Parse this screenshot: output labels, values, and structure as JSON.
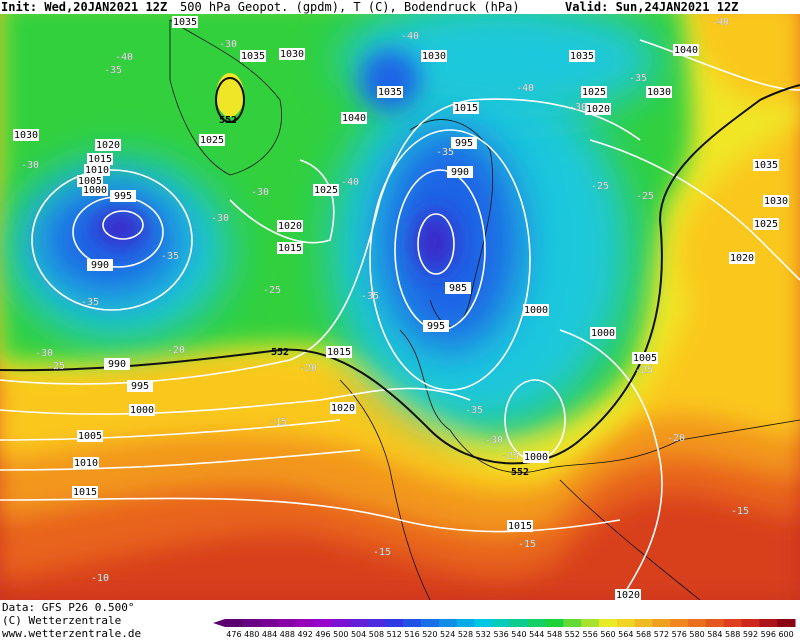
{
  "header": {
    "init": "Init: Wed,20JAN2021 12Z",
    "title": "500 hPa Geopot. (gpdm), T (C), Bodendruck (hPa)",
    "valid": "Valid: Sun,24JAN2021 12Z"
  },
  "footer": {
    "data": "Data: GFS P26 0.500°",
    "copyright": "(C) Wetterzentrale",
    "url": "www.wetterzentrale.de"
  },
  "legend": {
    "values": [
      476,
      480,
      484,
      488,
      492,
      496,
      500,
      504,
      508,
      512,
      516,
      520,
      524,
      528,
      532,
      536,
      540,
      544,
      548,
      552,
      556,
      560,
      564,
      568,
      572,
      576,
      580,
      584,
      588,
      592,
      596,
      600
    ]
  },
  "map_labels": {
    "isobars": [
      "1035",
      "1035",
      "1030",
      "1030",
      "1035",
      "1035",
      "1040",
      "1025",
      "1030",
      "1020",
      "1040",
      "1015",
      "1030",
      "1025",
      "1020",
      "1015",
      "1010",
      "1005",
      "1000",
      "995",
      "995",
      "990",
      "1025",
      "1035",
      "1030",
      "1025",
      "1020",
      "1015",
      "1020",
      "990",
      "985",
      "1000",
      "1000",
      "995",
      "990",
      "1015",
      "1005",
      "995",
      "1000",
      "1020",
      "1005",
      "1000",
      "1010",
      "1015",
      "1015",
      "1020"
    ],
    "temperatures": [
      "-35",
      "-40",
      "-30",
      "-40",
      "-40",
      "-35",
      "-40",
      "-30",
      "-30",
      "-30",
      "-30",
      "-40",
      "-35",
      "-25",
      "-25",
      "-35",
      "-25",
      "-35",
      "-35",
      "-30",
      "-25",
      "-20",
      "-20",
      "-25",
      "-15",
      "-35",
      "-30",
      "-25",
      "-20",
      "-15",
      "-15",
      "-15",
      "-10"
    ],
    "heights": [
      "552",
      "552",
      "552"
    ]
  }
}
